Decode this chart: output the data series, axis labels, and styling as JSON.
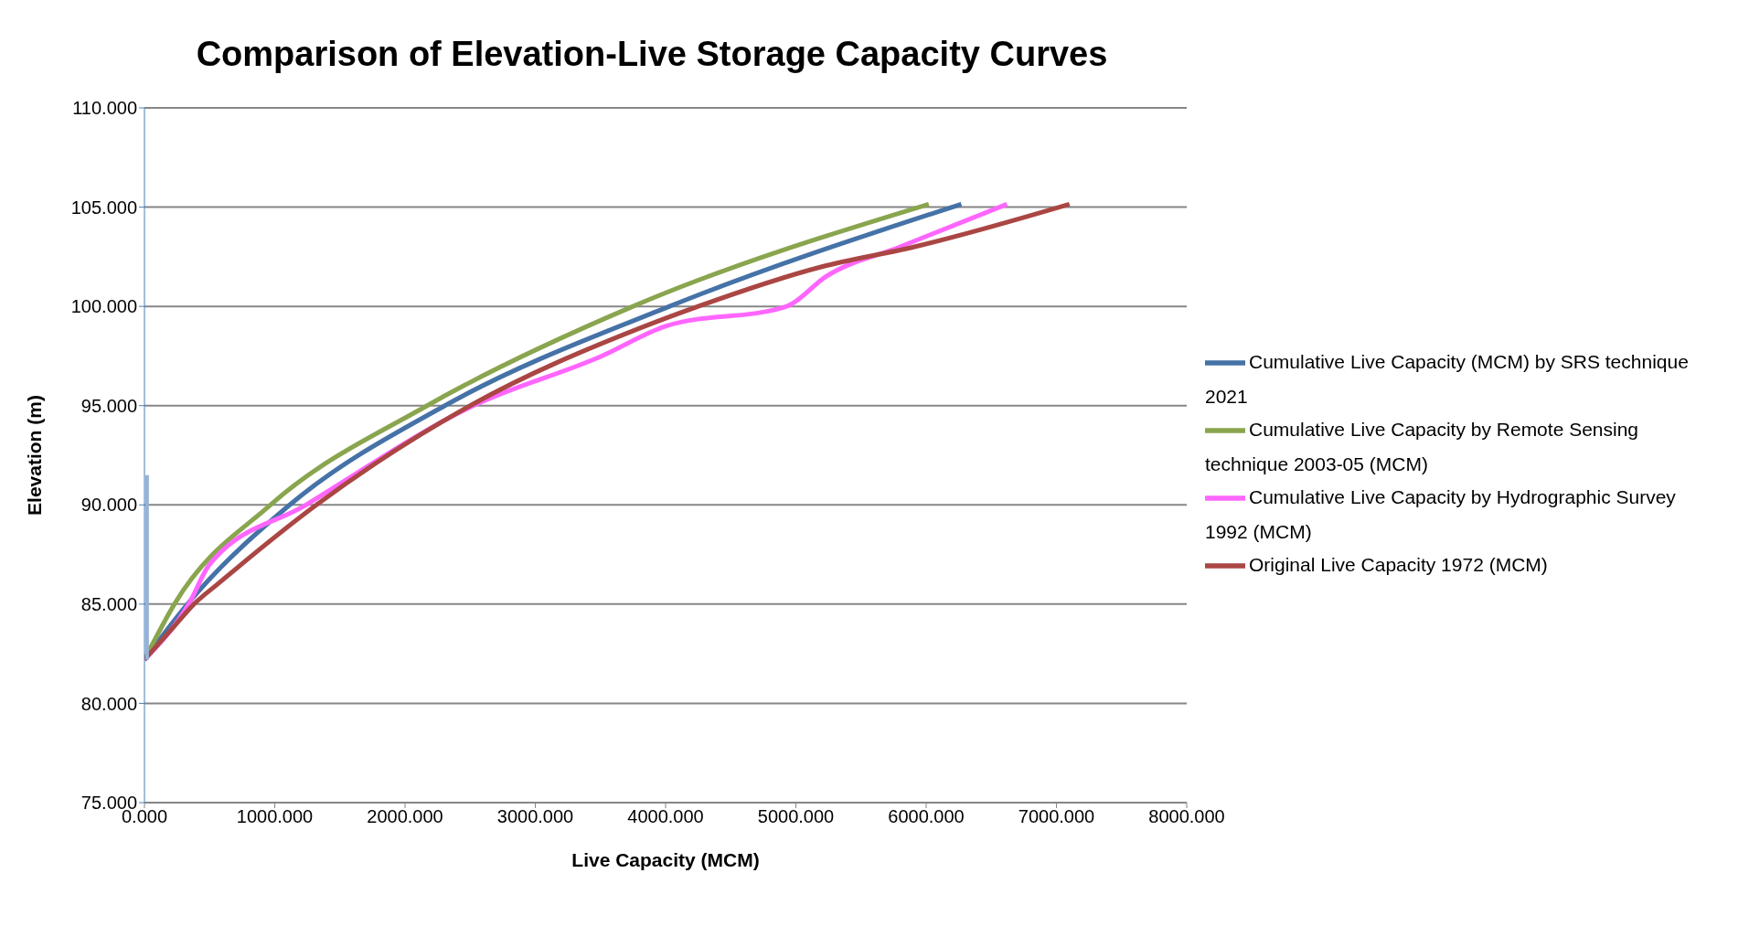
{
  "chart_data": {
    "type": "line",
    "title": "Comparison of Elevation-Live Storage Capacity Curves",
    "xlabel": "Live Capacity (MCM)",
    "ylabel": "Elevation (m)",
    "xlim": [
      0,
      8000
    ],
    "ylim": [
      75,
      110
    ],
    "xticks": [
      {
        "value": 0,
        "label": "0.000"
      },
      {
        "value": 1000,
        "label": "1000.000"
      },
      {
        "value": 2000,
        "label": "2000.000"
      },
      {
        "value": 3000,
        "label": "3000.000"
      },
      {
        "value": 4000,
        "label": "4000.000"
      },
      {
        "value": 5000,
        "label": "5000.000"
      },
      {
        "value": 6000,
        "label": "6000.000"
      },
      {
        "value": 7000,
        "label": "7000.000"
      },
      {
        "value": 8000,
        "label": "8000.000"
      }
    ],
    "yticks": [
      {
        "value": 75,
        "label": "75.000"
      },
      {
        "value": 80,
        "label": "80.000"
      },
      {
        "value": 85,
        "label": "85.000"
      },
      {
        "value": 90,
        "label": "90.000"
      },
      {
        "value": 95,
        "label": "95.000"
      },
      {
        "value": 100,
        "label": "100.000"
      },
      {
        "value": 105,
        "label": "105.000"
      },
      {
        "value": 110,
        "label": "110.000"
      }
    ],
    "grid": "y",
    "legend": "right",
    "marker": "none",
    "line_style": "solid",
    "series": [
      {
        "name": "Cumulative Live Capacity (MCM) by SRS technique 2021",
        "color": "#4572a7",
        "x": [
          0,
          330,
          1115,
          2306,
          4030,
          6270
        ],
        "values": [
          82.2,
          85,
          90,
          95,
          100,
          105.15
        ]
      },
      {
        "name": "Cumulative Live Capacity by Remote Sensing technique 2003-05 (MCM)",
        "color": "#89a54e",
        "x": [
          0,
          230,
          967,
          2170,
          3750,
          6020
        ],
        "values": [
          82.2,
          85,
          90,
          95,
          100,
          105.15
        ]
      },
      {
        "name": "Cumulative Live Capacity by Hydrographic Survey 1992 (MCM)",
        "color": "#ff66ff",
        "x": [
          0,
          340,
          500,
          1240,
          2525,
          3510,
          4000,
          4930,
          5230,
          5800,
          6620
        ],
        "values": [
          82.2,
          85,
          87,
          90,
          95,
          97.5,
          99,
          100,
          101.5,
          103,
          105.15
        ]
      },
      {
        "name": "Original Live Capacity 1972 (MCM)",
        "color": "#aa4643",
        "x": [
          0,
          230,
          380,
          560,
          1320,
          2500,
          3840,
          4250,
          5200,
          5910,
          7100
        ],
        "values": [
          82.2,
          83.9,
          85,
          86,
          90,
          95,
          99,
          100,
          102,
          103,
          105.15
        ]
      },
      {
        "color": "#95b3d7",
        "x": [
          20,
          20
        ],
        "values": [
          82.2,
          91.5
        ]
      }
    ]
  }
}
